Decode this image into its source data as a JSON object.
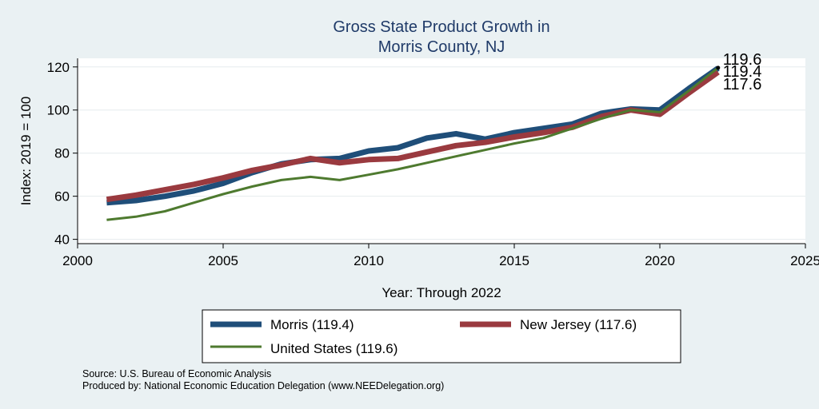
{
  "chart_data": {
    "type": "line",
    "title": [
      "Gross State Product Growth in",
      "Morris County, NJ"
    ],
    "xlabel": "Year: Through 2022",
    "ylabel": "Index: 2019 = 100",
    "xlim": [
      2000,
      2025
    ],
    "ylim": [
      38,
      124
    ],
    "x_ticks": [
      2000,
      2005,
      2010,
      2015,
      2020,
      2025
    ],
    "y_ticks": [
      40,
      60,
      80,
      100,
      120
    ],
    "grid": "horizontal",
    "legend_position": "bottom",
    "x": [
      2001,
      2002,
      2003,
      2004,
      2005,
      2006,
      2007,
      2008,
      2009,
      2010,
      2011,
      2012,
      2013,
      2014,
      2015,
      2016,
      2017,
      2018,
      2019,
      2020,
      2021,
      2022
    ],
    "series": [
      {
        "name": "Morris",
        "legend_label": "Morris  (119.4)",
        "color": "#1f4e79",
        "values": [
          57,
          58,
          60,
          62.5,
          66,
          71,
          75,
          77,
          77.5,
          81,
          82.5,
          87,
          89,
          86.5,
          89.5,
          91.5,
          93.5,
          98.5,
          100.5,
          100,
          110,
          119.4
        ]
      },
      {
        "name": "New Jersey",
        "legend_label": "New Jersey (117.6)",
        "color": "#9a3a3f",
        "values": [
          58.5,
          60.5,
          63,
          65.5,
          68.5,
          72,
          74.5,
          77.5,
          75.5,
          77,
          77.5,
          80.5,
          83.5,
          85,
          87.5,
          89.5,
          92,
          97,
          100,
          98,
          108,
          117.6
        ]
      },
      {
        "name": "United States",
        "legend_label": "United States (119.6)",
        "color": "#4e7a2f",
        "values": [
          49,
          50.5,
          53,
          57,
          61,
          64.5,
          67.5,
          69,
          67.5,
          70,
          72.5,
          75.5,
          78.5,
          81.5,
          84.5,
          87,
          91.5,
          96,
          100,
          99,
          109,
          119.6
        ]
      }
    ],
    "end_labels": [
      "119.6",
      "119.4",
      "117.6"
    ],
    "notes": [
      "Source: U.S. Bureau of Economic Analysis",
      "Produced by: National Economic Education Delegation (www.NEEDelegation.org)"
    ]
  }
}
